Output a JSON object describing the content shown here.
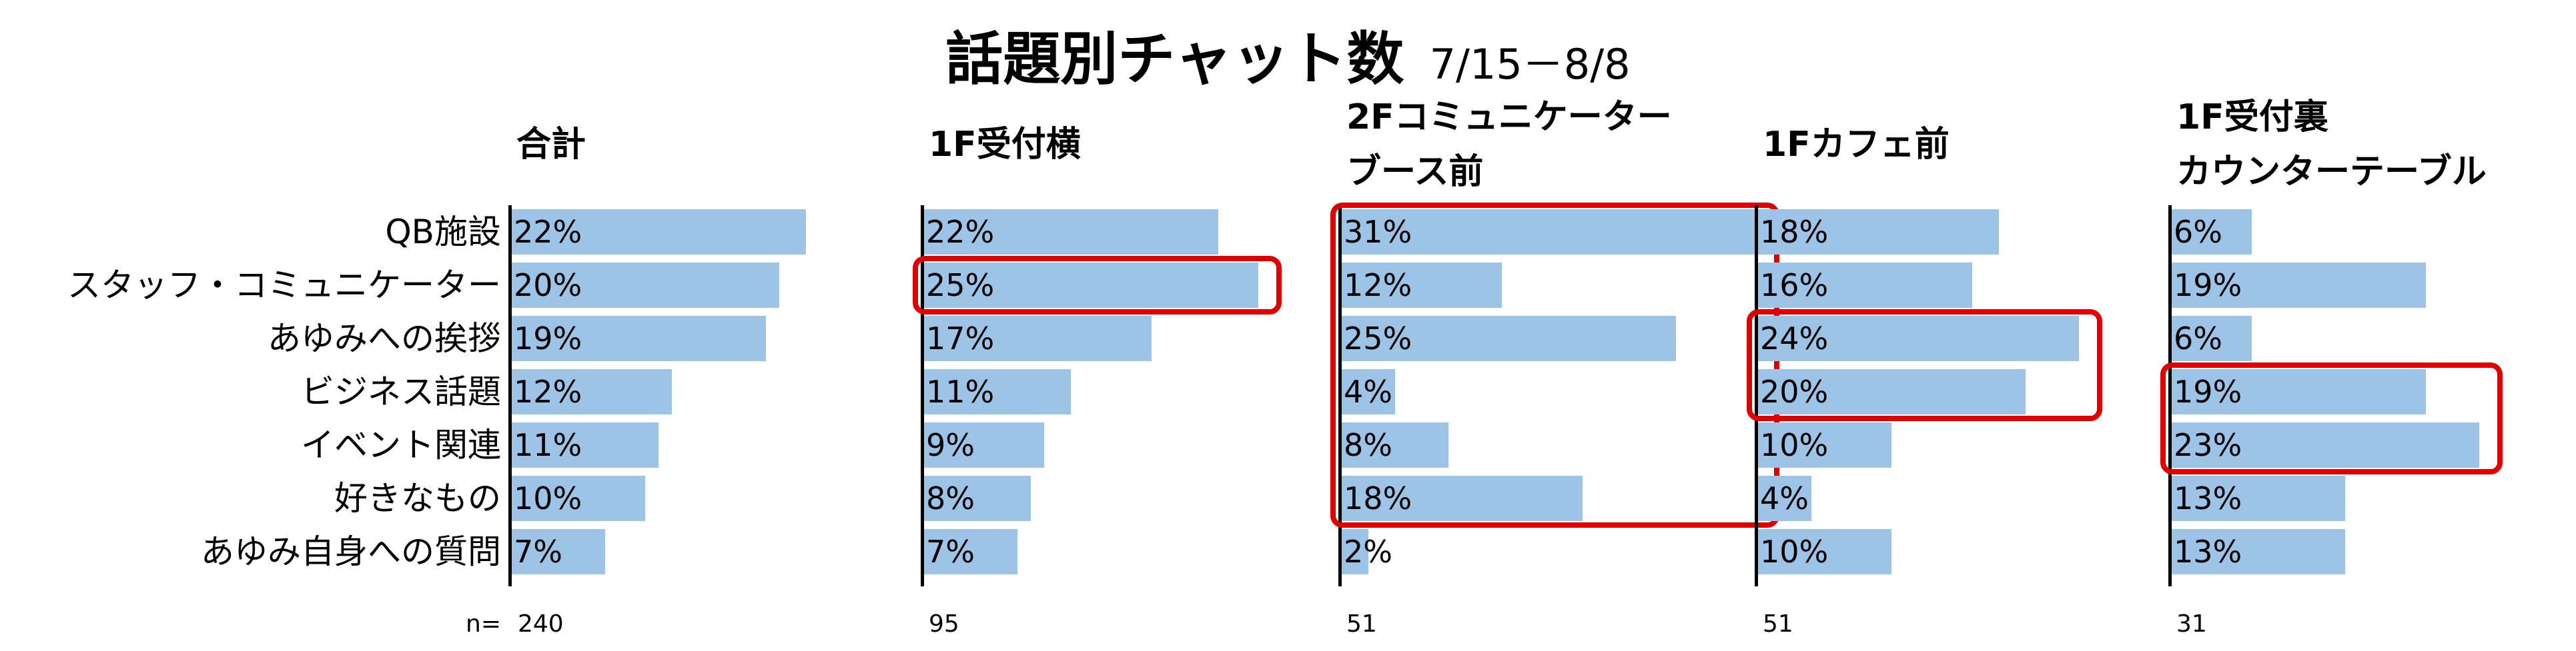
{
  "chart_data": {
    "type": "bar",
    "orientation": "horizontal",
    "title": "話題別チャット数",
    "subtitle": "7/15－8/8",
    "categories": [
      "QB施設",
      "スタッフ・コミュニケーター",
      "あゆみへの挨拶",
      "ビジネス話題",
      "イベント関連",
      "好きなもの",
      "あゆみ自身への質問"
    ],
    "unit": "%",
    "n_prefix": "n=",
    "series": [
      {
        "name": "合計",
        "values": [
          22,
          20,
          19,
          12,
          11,
          10,
          7
        ],
        "labels": [
          "22%",
          "20%",
          "19%",
          "12%",
          "11%",
          "10%",
          "7%"
        ],
        "n": "240",
        "highlight": []
      },
      {
        "name": "1F受付横",
        "values": [
          22,
          25,
          17,
          11,
          9,
          8,
          7
        ],
        "labels": [
          "22%",
          "25%",
          "17%",
          "11%",
          "9%",
          "8%",
          "7%"
        ],
        "n": "95",
        "highlight": [
          1
        ]
      },
      {
        "name": "2Fコミュニケーターブース前",
        "name_lines": [
          "2Fコミュニケーター",
          "ブース前"
        ],
        "values": [
          31,
          12,
          25,
          4,
          8,
          18,
          2
        ],
        "labels": [
          "31%",
          "12%",
          "25%",
          "4%",
          "8%",
          "18%",
          "2%"
        ],
        "n": "51",
        "highlight": [
          0,
          5
        ]
      },
      {
        "name": "1Fカフェ前",
        "values": [
          18,
          16,
          24,
          20,
          10,
          4,
          10
        ],
        "labels": [
          "18%",
          "16%",
          "24%",
          "20%",
          "10%",
          "4%",
          "10%"
        ],
        "n": "51",
        "highlight": [
          2,
          3
        ]
      },
      {
        "name": "1F受付裏カウンターテーブル",
        "name_lines": [
          "1F受付裏",
          "カウンターテーブル"
        ],
        "values": [
          6,
          19,
          6,
          19,
          23,
          13,
          13
        ],
        "labels": [
          "6%",
          "19%",
          "6%",
          "19%",
          "23%",
          "13%",
          "13%"
        ],
        "n": "31",
        "highlight": [
          3,
          4
        ]
      }
    ],
    "xlim": [
      0,
      31
    ],
    "grid": false,
    "legend": "none",
    "colors": {
      "bar": "#9dc3e6",
      "highlight": "#e00000",
      "axis": "#000000"
    }
  }
}
